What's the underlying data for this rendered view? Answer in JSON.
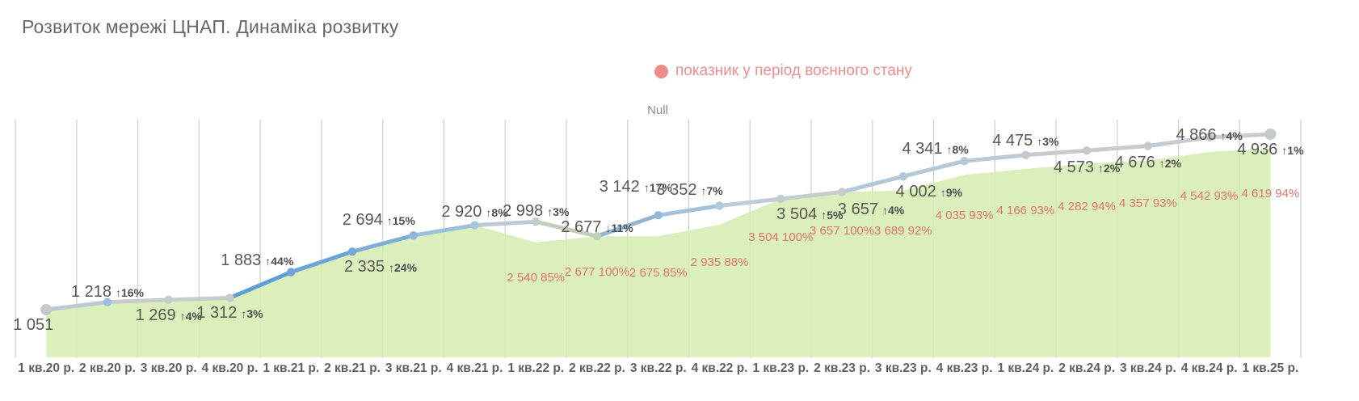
{
  "title": "Розвиток мережі ЦНАП. Динаміка розвитку",
  "legend": {
    "label": "показник у період воєнного стану",
    "dot_color": "#ee8b8b",
    "text_color": "#ef8d8d"
  },
  "pane_label": "Null",
  "chart_data": {
    "type": "line+area",
    "title": "Розвиток мережі ЦНАП. Динаміка розвитку",
    "grid": "vertical",
    "legend_position": "top-center",
    "ylim": [
      0,
      5260
    ],
    "x_tick_labels": [
      "1 кв.20 р.",
      "2 кв.20 р.",
      "3 кв.20 р.",
      "4 кв.20 р.",
      "1 кв.21 р.",
      "2 кв.21 р.",
      "3 кв.21 р.",
      "4 кв.21 р.",
      "1 кв.22 р.",
      "2 кв.22 р.",
      "3 кв.22 р.",
      "4 кв.22 р.",
      "1 кв.23 р.",
      "2 кв.23 р.",
      "3 кв.23 р.",
      "4 кв.23 р.",
      "1 кв.24 р.",
      "2 кв.24 р.",
      "3 кв.24 р.",
      "4 кв.24 р.",
      "1 кв.25 р."
    ],
    "series": [
      {
        "name": "line-total",
        "values": [
          1051,
          1218,
          1269,
          1312,
          1883,
          2335,
          2694,
          2920,
          2998,
          2677,
          3142,
          3352,
          3504,
          3657,
          4002,
          4341,
          4475,
          4573,
          4676,
          4866,
          4936
        ],
        "point_labels": [
          {
            "num": "1 051",
            "pct": "",
            "pos": "below",
            "dx": -16,
            "dy": 0
          },
          {
            "num": "1 218",
            "pct": "↑16%",
            "pos": "above",
            "dx": 0,
            "dy": 2
          },
          {
            "num": "1 269",
            "pct": "↑4%",
            "pos": "below",
            "dx": 0,
            "dy": 0
          },
          {
            "num": "1 312",
            "pct": "↑3%",
            "pos": "below",
            "dx": 0,
            "dy": 0
          },
          {
            "num": "1 883",
            "pct": "↑44%",
            "pos": "above",
            "dx": -42,
            "dy": 0
          },
          {
            "num": "2 335",
            "pct": "↑24%",
            "pos": "below",
            "dx": 35,
            "dy": 0
          },
          {
            "num": "2 694",
            "pct": "↑15%",
            "pos": "above",
            "dx": -43,
            "dy": -4
          },
          {
            "num": "2 920",
            "pct": "↑8%",
            "pos": "above",
            "dx": 0,
            "dy": -2
          },
          {
            "num": "2 998",
            "pct": "↑3%",
            "pos": "above",
            "dx": 0,
            "dy": 2
          },
          {
            "num": "2 677",
            "pct": "↓11%",
            "pos": "above",
            "dx": 0,
            "dy": 4
          },
          {
            "num": "3 142",
            "pct": "↑17%",
            "pos": "above",
            "dx": -28,
            "dy": -20
          },
          {
            "num": "3 352",
            "pct": "↑7%",
            "pos": "above",
            "dx": -37,
            "dy": -4
          },
          {
            "num": "3 504",
            "pct": "↑5%",
            "pos": "below",
            "dx": 36,
            "dy": 0
          },
          {
            "num": "3 657",
            "pct": "↑4%",
            "pos": "below",
            "dx": 36,
            "dy": 3
          },
          {
            "num": "4 002",
            "pct": "↑9%",
            "pos": "below",
            "dx": 32,
            "dy": 0
          },
          {
            "num": "4 341",
            "pct": "↑8%",
            "pos": "above",
            "dx": -36,
            "dy": 0
          },
          {
            "num": "4 475",
            "pct": "↑3%",
            "pos": "above",
            "dx": 0,
            "dy": -3
          },
          {
            "num": "4 573",
            "pct": "↑2%",
            "pos": "below",
            "dx": 0,
            "dy": 2
          },
          {
            "num": "4 676",
            "pct": "↑2%",
            "pos": "below",
            "dx": 0,
            "dy": 2
          },
          {
            "num": "4 866",
            "pct": "↑4%",
            "pos": "above",
            "dx": 0,
            "dy": 12
          },
          {
            "num": "4 936",
            "pct": "↑1%",
            "pos": "below",
            "dx": 0,
            "dy": 0
          }
        ]
      },
      {
        "name": "area-wartime",
        "start_index": 8,
        "values": [
          2540,
          2677,
          2675,
          2935,
          3504,
          3657,
          3689,
          4035,
          4166,
          4282,
          4357,
          4542,
          4619
        ],
        "labels": [
          "2 540 85%",
          "2 677 100%",
          "2 675 85%",
          "2 935 88%",
          "3 504 100%",
          "3 657 100%",
          "3 689 92%",
          "4 035 93%",
          "4 166 93%",
          "4 282 94%",
          "4 357 93%",
          "4 542 93%",
          "4 619 94%"
        ]
      }
    ],
    "colors": {
      "area_fill": "#d5ecb0",
      "grid": "#d2d2d2",
      "value_label": "#5a5853",
      "pct_label": "#4e4e4e",
      "wartime_label": "#e2746c",
      "axis_label": "#5f5f5f",
      "segment_colors": [
        "#bdc9d2",
        "#c7cbce",
        "#c8cccd",
        "#609fd6",
        "#6ba4d8",
        "#7fadd9",
        "#9dbfdc",
        "#bec9d2",
        "#c3ceba",
        "#93b6d2",
        "#a5c2da",
        "#c0cbd3",
        "#c7cccf",
        "#b3c8d9",
        "#b4c8d9",
        "#bec9d3",
        "#c6cbce",
        "#c7cbce",
        "#c4cbd1",
        "#c8cccd"
      ],
      "dot_colors": [
        "#c6c9cb",
        "#9cc0de",
        "#c3ccd2",
        "#c6c9cb",
        "#6ea6d9",
        "#75a9da",
        "#8db6dc",
        "#a7c5df",
        "#c2cbd1",
        "#c3cfb7",
        "#97bad7",
        "#b3c8d9",
        "#c5cbcf",
        "#c6cbce",
        "#b0c7d9",
        "#b3c9da",
        "#c0cad1",
        "#c6c9cb",
        "#c6c9cb",
        "#c5c9cc",
        "#c6c9cb"
      ]
    }
  }
}
